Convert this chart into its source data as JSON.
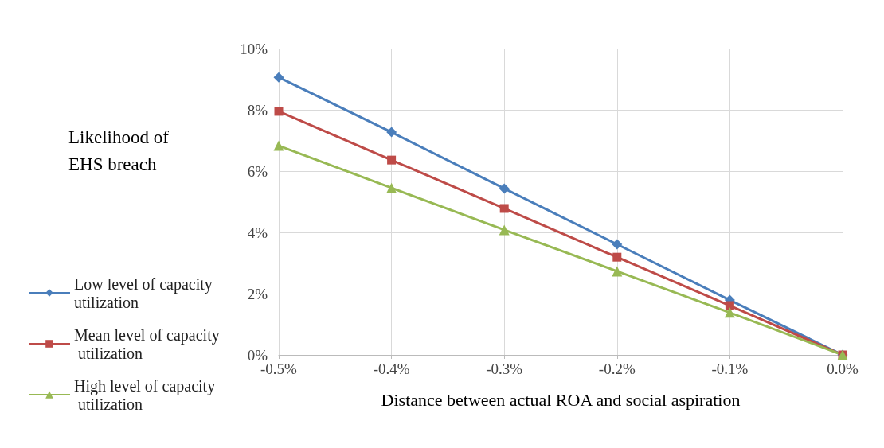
{
  "chart_data": {
    "type": "line",
    "xlabel": "Distance between actual ROA and social aspiration",
    "ylabel": "Likelihood of EHS breach",
    "x": [
      -0.5,
      -0.4,
      -0.3,
      -0.2,
      -0.1,
      0.0
    ],
    "series": [
      {
        "name": "Low level of capacity utilization",
        "color": "#4a7ebb",
        "marker": "diamond",
        "values": [
          9.06,
          7.27,
          5.43,
          3.61,
          1.79,
          0
        ]
      },
      {
        "name": "Mean level of capacity utilization",
        "color": "#be4b48",
        "marker": "square",
        "values": [
          7.95,
          6.36,
          4.78,
          3.19,
          1.61,
          0
        ]
      },
      {
        "name": "High level of capacity utilization",
        "color": "#98b954",
        "marker": "triangle",
        "values": [
          6.83,
          5.45,
          4.08,
          2.73,
          1.38,
          0
        ]
      }
    ],
    "xlim": [
      -0.5,
      0.0
    ],
    "xticks": [
      {
        "value": -0.5,
        "label": "-0.5%"
      },
      {
        "value": -0.4,
        "label": "-0.4%"
      },
      {
        "value": -0.3,
        "label": "-0.3%"
      },
      {
        "value": -0.2,
        "label": "-0.2%"
      },
      {
        "value": -0.1,
        "label": "-0.1%"
      },
      {
        "value": 0.0,
        "label": "0.0%"
      }
    ],
    "ylim": [
      0,
      10
    ],
    "yticks": [
      {
        "value": 0,
        "label": "0%"
      },
      {
        "value": 2,
        "label": "2%"
      },
      {
        "value": 4,
        "label": "4%"
      },
      {
        "value": 6,
        "label": "6%"
      },
      {
        "value": 8,
        "label": "8%"
      },
      {
        "value": 10,
        "label": "10%"
      }
    ],
    "grid": true,
    "legend": "left",
    "line_style": "solid"
  }
}
